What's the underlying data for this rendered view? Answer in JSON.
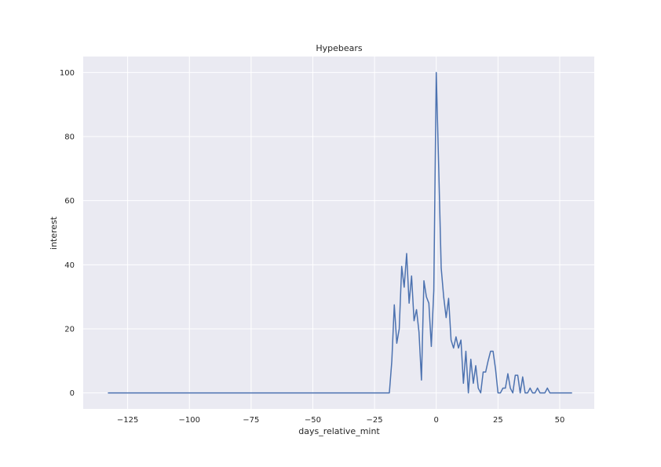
{
  "chart_data": {
    "type": "line",
    "title": "Hypebears",
    "xlabel": "days_relative_mint",
    "ylabel": "interest",
    "xlim": [
      -143,
      64
    ],
    "ylim": [
      -5,
      105
    ],
    "xticks": [
      -125,
      -100,
      -75,
      -50,
      -25,
      0,
      25,
      50
    ],
    "yticks": [
      0,
      20,
      40,
      60,
      80,
      100
    ],
    "grid": true,
    "colors": {
      "background": "#eaeaf2",
      "grid": "#ffffff",
      "line": "#4c72b0"
    },
    "series": [
      {
        "x": [
          -133,
          -20,
          -19,
          -18,
          -17,
          -16,
          -15,
          -14,
          -13,
          -12,
          -11,
          -10,
          -9,
          -8,
          -7,
          -6,
          -5,
          -4,
          -3,
          -2,
          -1,
          0,
          1,
          2,
          3,
          4,
          5,
          6,
          7,
          8,
          9,
          10,
          11,
          12,
          13,
          14,
          15,
          16,
          17,
          18,
          19,
          20,
          21,
          22,
          23,
          24,
          25,
          26,
          27,
          28,
          29,
          30,
          31,
          32,
          33,
          34,
          35,
          36,
          37,
          38,
          39,
          40,
          41,
          42,
          43,
          44,
          45,
          46,
          55
        ],
        "y": [
          0,
          0,
          0,
          10,
          27.5,
          15.5,
          20,
          39.5,
          33,
          43.5,
          28,
          36.5,
          22.5,
          26,
          19,
          4,
          35,
          30,
          28,
          14.5,
          32,
          100,
          70,
          39,
          30,
          23.5,
          29.5,
          16.5,
          14,
          17.5,
          14,
          16.5,
          3,
          13,
          0,
          10.5,
          3,
          8.5,
          1.5,
          0,
          6.5,
          6.5,
          10,
          13,
          13,
          7.5,
          0,
          0,
          1.5,
          1.5,
          6,
          1.5,
          0,
          5.5,
          5.5,
          0,
          5,
          0,
          0,
          1.5,
          0,
          0,
          1.5,
          0,
          0,
          0,
          1.5,
          0,
          0
        ]
      }
    ]
  }
}
